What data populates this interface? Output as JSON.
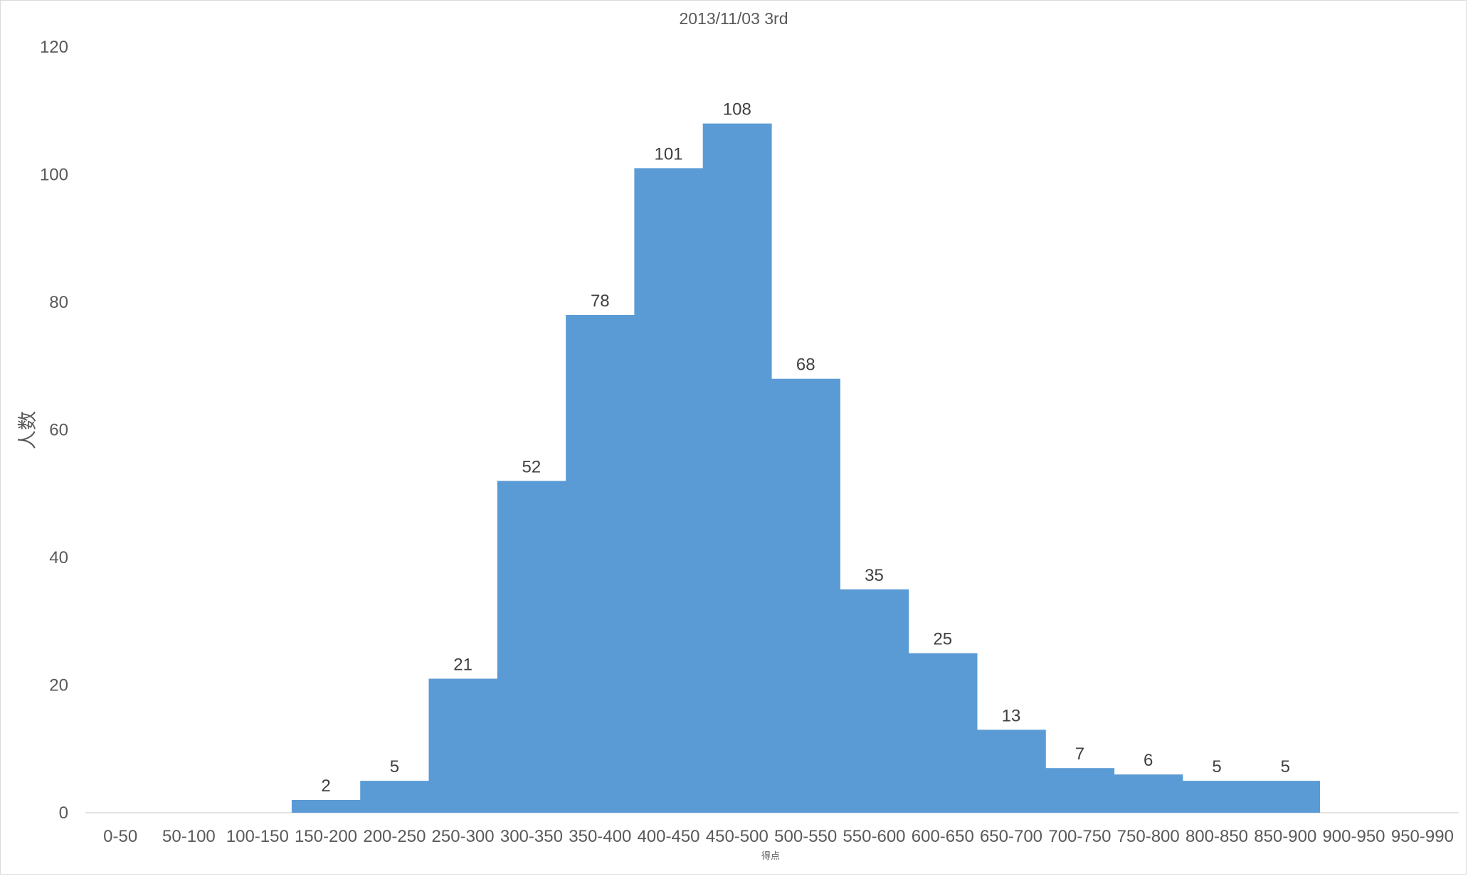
{
  "chart_data": {
    "type": "bar",
    "title": "2013/11/03 3rd",
    "xlabel": "得点",
    "ylabel": "人数",
    "categories": [
      "0-50",
      "50-100",
      "100-150",
      "150-200",
      "200-250",
      "250-300",
      "300-350",
      "350-400",
      "400-450",
      "450-500",
      "500-550",
      "550-600",
      "600-650",
      "650-700",
      "700-750",
      "750-800",
      "800-850",
      "850-900",
      "900-950",
      "950-990"
    ],
    "values": [
      0,
      0,
      0,
      2,
      5,
      21,
      52,
      78,
      101,
      108,
      68,
      35,
      25,
      13,
      7,
      6,
      5,
      5,
      0,
      0
    ],
    "data_labels": [
      "",
      "",
      "",
      "2",
      "5",
      "21",
      "52",
      "78",
      "101",
      "108",
      "68",
      "35",
      "25",
      "13",
      "7",
      "6",
      "5",
      "5",
      "",
      ""
    ],
    "ylim": [
      0,
      120
    ],
    "yticks": [
      0,
      20,
      40,
      60,
      80,
      100,
      120
    ],
    "grid": false,
    "legend": "none",
    "bar_color": "#5b9bd5"
  }
}
